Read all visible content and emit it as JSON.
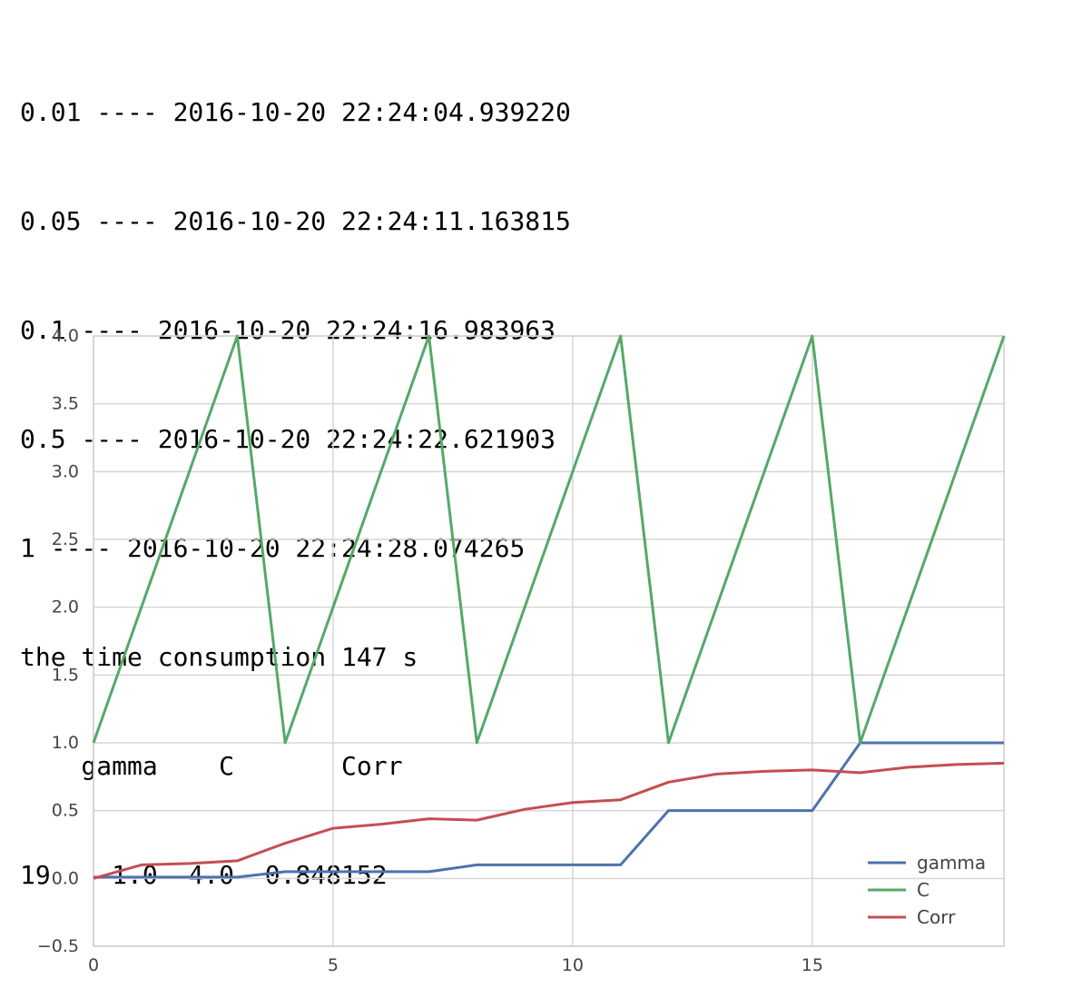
{
  "output_lines": [
    "0.01 ---- 2016-10-20 22:24:04.939220",
    "0.05 ---- 2016-10-20 22:24:11.163815",
    "0.1 ---- 2016-10-20 22:24:16.983963",
    "0.5 ---- 2016-10-20 22:24:22.621903",
    "1 ---- 2016-10-20 22:24:28.074265",
    "the time consumption 147 s",
    "    gamma    C       Corr",
    "19    1.0  4.0  0.848152"
  ],
  "chart_data": {
    "type": "line",
    "title": "",
    "xlabel": "",
    "ylabel": "",
    "x": [
      0,
      1,
      2,
      3,
      4,
      5,
      6,
      7,
      8,
      9,
      10,
      11,
      12,
      13,
      14,
      15,
      16,
      17,
      18,
      19
    ],
    "xlim": [
      0,
      19
    ],
    "ylim": [
      -0.5,
      4.0
    ],
    "xticks": [
      0,
      5,
      10,
      15
    ],
    "xtick_labels": [
      "0",
      "5",
      "10",
      "15"
    ],
    "yticks": [
      -0.5,
      0.0,
      0.5,
      1.0,
      1.5,
      2.0,
      2.5,
      3.0,
      3.5,
      4.0
    ],
    "ytick_labels": [
      "−0.5",
      "0.0",
      "0.5",
      "1.0",
      "1.5",
      "2.0",
      "2.5",
      "3.0",
      "3.5",
      "4.0"
    ],
    "grid": true,
    "legend_position": "lower-right",
    "series": [
      {
        "name": "gamma",
        "color": "#4c72b0",
        "values": [
          0.01,
          0.01,
          0.01,
          0.01,
          0.05,
          0.05,
          0.05,
          0.05,
          0.1,
          0.1,
          0.1,
          0.1,
          0.5,
          0.5,
          0.5,
          0.5,
          1.0,
          1.0,
          1.0,
          1.0
        ]
      },
      {
        "name": "C",
        "color": "#55a868",
        "values": [
          1.0,
          2.0,
          3.0,
          4.0,
          1.0,
          2.0,
          3.0,
          4.0,
          1.0,
          2.0,
          3.0,
          4.0,
          1.0,
          2.0,
          3.0,
          4.0,
          1.0,
          2.0,
          3.0,
          4.0
        ]
      },
      {
        "name": "Corr",
        "color": "#c44e52",
        "values": [
          0.0,
          0.1,
          0.11,
          0.13,
          0.26,
          0.37,
          0.4,
          0.44,
          0.43,
          0.51,
          0.56,
          0.58,
          0.71,
          0.77,
          0.79,
          0.8,
          0.78,
          0.82,
          0.84,
          0.85
        ]
      }
    ]
  }
}
